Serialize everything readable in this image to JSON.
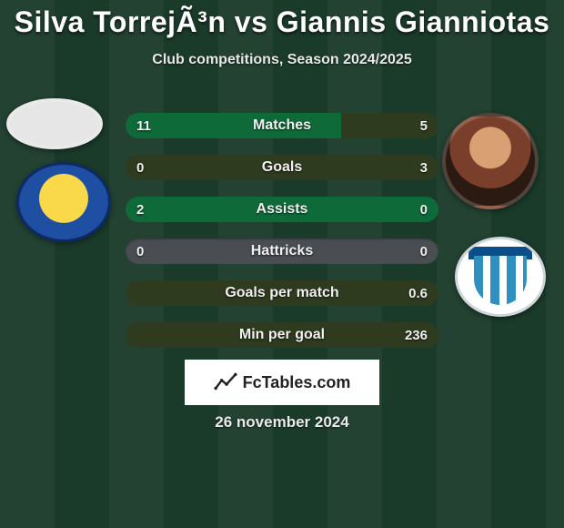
{
  "header": {
    "title": "Silva TorrejÃ³n vs Giannis Gianniotas",
    "subtitle": "Club competitions, Season 2024/2025"
  },
  "colors": {
    "left_fill": "#0f6a3a",
    "right_fill": "#2f3b1e",
    "track": "#4a4e52",
    "text": "#f0f0f0",
    "background": "#1a3a2a"
  },
  "bars": [
    {
      "label": "Matches",
      "left": "11",
      "right": "5",
      "left_pct": 69,
      "right_pct": 31
    },
    {
      "label": "Goals",
      "left": "0",
      "right": "3",
      "left_pct": 0,
      "right_pct": 100
    },
    {
      "label": "Assists",
      "left": "2",
      "right": "0",
      "left_pct": 100,
      "right_pct": 0
    },
    {
      "label": "Hattricks",
      "left": "0",
      "right": "0",
      "left_pct": 0,
      "right_pct": 0
    },
    {
      "label": "Goals per match",
      "left": "",
      "right": "0.6",
      "left_pct": 0,
      "right_pct": 100
    },
    {
      "label": "Min per goal",
      "left": "",
      "right": "236",
      "left_pct": 0,
      "right_pct": 100
    }
  ],
  "attribution": "FcTables.com",
  "date": "26 november 2024"
}
